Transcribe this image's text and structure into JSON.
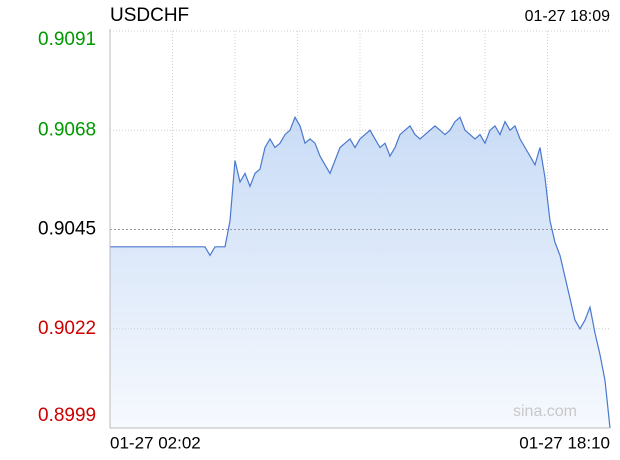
{
  "chart_data": {
    "type": "line",
    "title": "USDCHF",
    "timestamp": "01-27 18:09",
    "watermark": "sina.com",
    "categories": [
      "01-27 02:02",
      null,
      null,
      null,
      null,
      null,
      null,
      null,
      null,
      null,
      null,
      null,
      null,
      null,
      null,
      null,
      null,
      null,
      null,
      null,
      null,
      null,
      null,
      null,
      null,
      null,
      null,
      null,
      null,
      null,
      null,
      null,
      null,
      null,
      null,
      null,
      null,
      null,
      null,
      null,
      null,
      null,
      null,
      null,
      null,
      null,
      null,
      null,
      null,
      null,
      null,
      null,
      null,
      null,
      null,
      null,
      null,
      null,
      null,
      null,
      null,
      null,
      null,
      null,
      null,
      null,
      null,
      null,
      null,
      null,
      null,
      null,
      null,
      null,
      null,
      null,
      null,
      null,
      null,
      null,
      null,
      null,
      null,
      null,
      null,
      null,
      null,
      null,
      null,
      null,
      null,
      null,
      null,
      null,
      null,
      null,
      null,
      null,
      null,
      null,
      "01-27 18:10"
    ],
    "values": [
      0.9041,
      0.9041,
      0.9041,
      0.9041,
      0.9041,
      0.9041,
      0.9041,
      0.9041,
      0.9041,
      0.9041,
      0.9041,
      0.9041,
      0.9041,
      0.9041,
      0.9041,
      0.9041,
      0.9041,
      0.9041,
      0.9041,
      0.9041,
      0.9039,
      0.9041,
      0.9041,
      0.9041,
      0.9047,
      0.9061,
      0.9056,
      0.9058,
      0.9055,
      0.9058,
      0.9059,
      0.9064,
      0.9066,
      0.9064,
      0.9065,
      0.9067,
      0.9068,
      0.9071,
      0.9069,
      0.9065,
      0.9066,
      0.9065,
      0.9062,
      0.906,
      0.9058,
      0.9061,
      0.9064,
      0.9065,
      0.9066,
      0.9064,
      0.9066,
      0.9067,
      0.9068,
      0.9066,
      0.9064,
      0.9065,
      0.9062,
      0.9064,
      0.9067,
      0.9068,
      0.9069,
      0.9067,
      0.9066,
      0.9067,
      0.9068,
      0.9069,
      0.9068,
      0.9067,
      0.9068,
      0.907,
      0.9071,
      0.9068,
      0.9067,
      0.9066,
      0.9067,
      0.9065,
      0.9068,
      0.9069,
      0.9067,
      0.907,
      0.9068,
      0.9069,
      0.9066,
      0.9064,
      0.9062,
      0.906,
      0.9064,
      0.9057,
      0.9047,
      0.9042,
      0.9039,
      0.9034,
      0.9029,
      0.9024,
      0.9022,
      0.9024,
      0.9027,
      0.9021,
      0.9016,
      0.901,
      0.8999
    ],
    "color": "#4a78cf",
    "ylim": [
      0.8999,
      0.9091
    ],
    "yticks": [
      0.9091,
      0.9068,
      0.9045,
      0.9022,
      0.8999
    ],
    "ytick_colors": [
      "#009900",
      "#009900",
      "#000000",
      "#cc0000",
      "#cc0000"
    ],
    "grid": true
  }
}
